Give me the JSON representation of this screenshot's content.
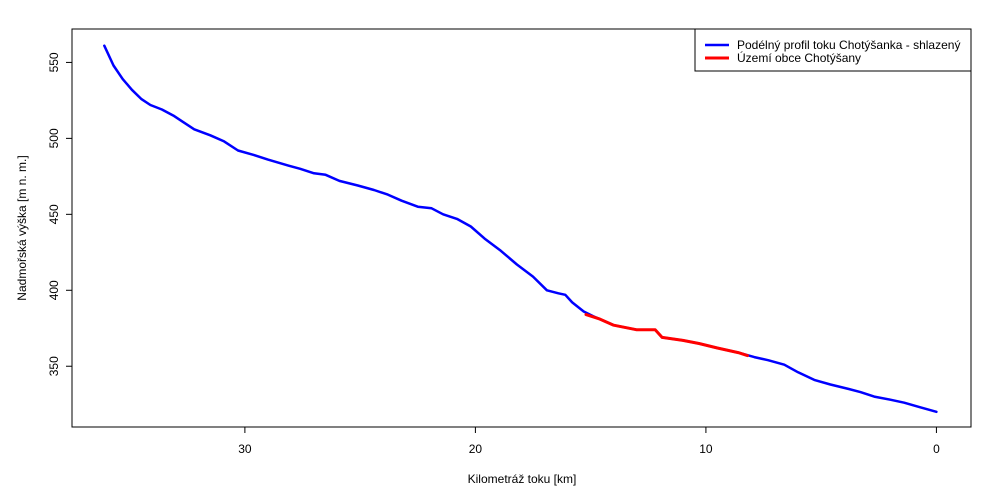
{
  "chart_data": {
    "type": "line",
    "title": "",
    "xlabel": "Kilometráž toku [km]",
    "ylabel": "Nadmořská výška [m n. m.]",
    "xlim": [
      37.5,
      -1.5
    ],
    "ylim": [
      310,
      572
    ],
    "x_ticks": [
      30,
      20,
      10,
      0
    ],
    "y_ticks": [
      350,
      400,
      450,
      500,
      550
    ],
    "x_reversed": true,
    "grid": false,
    "legend_position": "top-right",
    "series": [
      {
        "name": "Podélný profil toku Chotýšanka - shlazený",
        "color": "#0000FF",
        "x": [
          36.1,
          35.7,
          35.3,
          34.9,
          34.5,
          34.1,
          33.6,
          33.1,
          32.7,
          32.2,
          31.5,
          30.9,
          30.3,
          29.6,
          29.0,
          28.1,
          27.6,
          27.0,
          26.5,
          25.9,
          25.1,
          24.4,
          23.8,
          23.2,
          22.5,
          21.9,
          21.4,
          20.8,
          20.2,
          19.6,
          18.9,
          18.2,
          17.5,
          16.9,
          16.4,
          16.1,
          15.8,
          15.3,
          14.9,
          14.0,
          13.0,
          12.2,
          11.9,
          11.0,
          10.3,
          9.5,
          8.6,
          7.9,
          7.3,
          6.6,
          6.0,
          5.3,
          4.6,
          3.8,
          3.3,
          2.7,
          2.0,
          1.4,
          0.7,
          0.0
        ],
        "y": [
          561,
          548,
          539,
          532,
          526,
          522,
          519,
          515,
          511,
          506,
          502,
          498,
          492,
          489,
          486,
          482,
          480,
          477,
          476,
          472,
          469,
          466,
          463,
          459,
          455,
          454,
          450,
          447,
          442,
          434,
          426,
          417,
          409,
          400,
          398,
          397,
          392,
          386,
          383,
          377,
          374,
          374,
          369,
          367,
          365,
          362,
          359,
          356,
          354,
          351,
          346,
          341,
          338,
          335,
          333,
          330,
          328,
          326,
          323,
          320
        ]
      },
      {
        "name": "Území obce Chotýšany",
        "color": "#FF0000",
        "x": [
          15.2,
          14.6,
          14.0,
          13.0,
          12.2,
          11.9,
          11.0,
          10.3,
          9.5,
          8.6,
          8.2
        ],
        "y": [
          384,
          381,
          377,
          374,
          374,
          369,
          367,
          365,
          362,
          359,
          357
        ]
      }
    ]
  }
}
